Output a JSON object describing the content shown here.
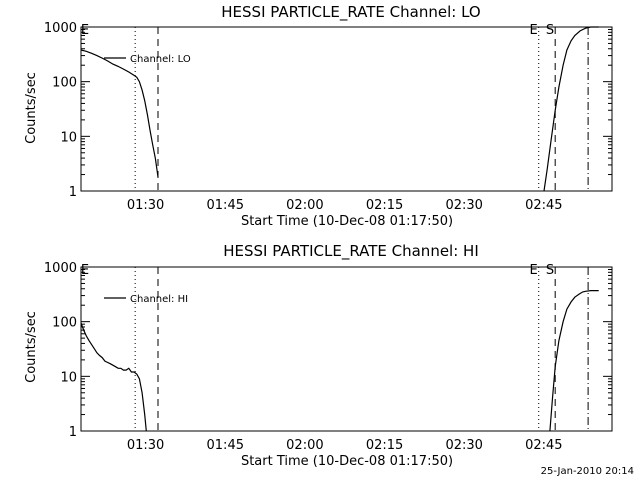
{
  "chart_data": [
    {
      "type": "line",
      "title": "HESSI PARTICLE_RATE Channel: LO",
      "xlabel": "Start Time (10-Dec-08 01:17:50)",
      "ylabel": "Counts/sec",
      "y_scale": "log",
      "ylim": [
        1,
        1000
      ],
      "xlim_minutes": [
        0,
        100
      ],
      "x_ticks": [
        "01:30",
        "01:45",
        "02:00",
        "02:15",
        "02:30",
        "02:45"
      ],
      "y_ticks": [
        "1",
        "10",
        "100",
        "1000"
      ],
      "legend": {
        "label": "Channel: LO",
        "placement": "top-left"
      },
      "markers": [
        {
          "label": "E",
          "time_min": 0,
          "style": "none"
        },
        {
          "label": "",
          "time_min": 10.2,
          "style": "dotted"
        },
        {
          "label": "",
          "time_min": 14.5,
          "style": "dashed"
        },
        {
          "label": "E",
          "time_min": 86.2,
          "style": "dotted"
        },
        {
          "label": "S",
          "time_min": 89.3,
          "style": "dashed"
        },
        {
          "label": "",
          "time_min": 95.5,
          "style": "dashdot"
        }
      ],
      "series": [
        {
          "name": "Channel: LO",
          "segments": [
            {
              "x": [
                0,
                1,
                2,
                3,
                4,
                5,
                6,
                7,
                8,
                9,
                10,
                10.5,
                11,
                11.5,
                12,
                12.5,
                13,
                13.5,
                14,
                14.3,
                14.5
              ],
              "y": [
                380,
                360,
                330,
                300,
                270,
                240,
                210,
                190,
                170,
                150,
                130,
                120,
                100,
                70,
                45,
                25,
                13,
                7,
                4,
                2.5,
                1.8
              ]
            },
            {
              "x": [
                87.2,
                87.8,
                88.5,
                89.3,
                90,
                90.8,
                91.5,
                92.3,
                93,
                94,
                95,
                96,
                97.5
              ],
              "y": [
                1,
                2.5,
                8,
                30,
                80,
                200,
                380,
                560,
                700,
                850,
                950,
                1000,
                1000
              ]
            }
          ]
        }
      ]
    },
    {
      "type": "line",
      "title": "HESSI PARTICLE_RATE Channel: HI",
      "xlabel": "Start Time (10-Dec-08 01:17:50)",
      "ylabel": "Counts/sec",
      "y_scale": "log",
      "ylim": [
        1,
        1000
      ],
      "xlim_minutes": [
        0,
        100
      ],
      "x_ticks": [
        "01:30",
        "01:45",
        "02:00",
        "02:15",
        "02:30",
        "02:45"
      ],
      "y_ticks": [
        "1",
        "10",
        "100",
        "1000"
      ],
      "legend": {
        "label": "Channel: HI",
        "placement": "top-left"
      },
      "markers": [
        {
          "label": "E",
          "time_min": 0,
          "style": "none"
        },
        {
          "label": "",
          "time_min": 10.2,
          "style": "dotted"
        },
        {
          "label": "",
          "time_min": 14.5,
          "style": "dashed"
        },
        {
          "label": "E",
          "time_min": 86.2,
          "style": "dotted"
        },
        {
          "label": "S",
          "time_min": 89.3,
          "style": "dashed"
        },
        {
          "label": "",
          "time_min": 95.5,
          "style": "dashdot"
        }
      ],
      "series": [
        {
          "name": "Channel: HI",
          "segments": [
            {
              "x": [
                0,
                0.5,
                1,
                1.5,
                2,
                2.5,
                3,
                3.5,
                4,
                4.5,
                5,
                5.5,
                6,
                6.5,
                7,
                7.5,
                8,
                8.5,
                9,
                9.5,
                10,
                10.5,
                11,
                11.5,
                12,
                12.3
              ],
              "y": [
                95,
                70,
                55,
                45,
                38,
                32,
                27,
                24,
                22,
                19,
                18,
                17,
                16,
                15,
                14,
                14,
                13,
                13,
                14,
                12,
                12,
                11,
                9,
                5,
                2,
                1
              ]
            },
            {
              "x": [
                88.3,
                88.8,
                89.3,
                90,
                90.8,
                91.5,
                92.3,
                93,
                93.8,
                94.5,
                95,
                96,
                97.5
              ],
              "y": [
                1,
                4,
                15,
                45,
                100,
                170,
                230,
                280,
                320,
                350,
                360,
                370,
                370
              ]
            }
          ]
        }
      ]
    }
  ],
  "footer": {
    "timestamp": "25-Jan-2010 20:14"
  }
}
